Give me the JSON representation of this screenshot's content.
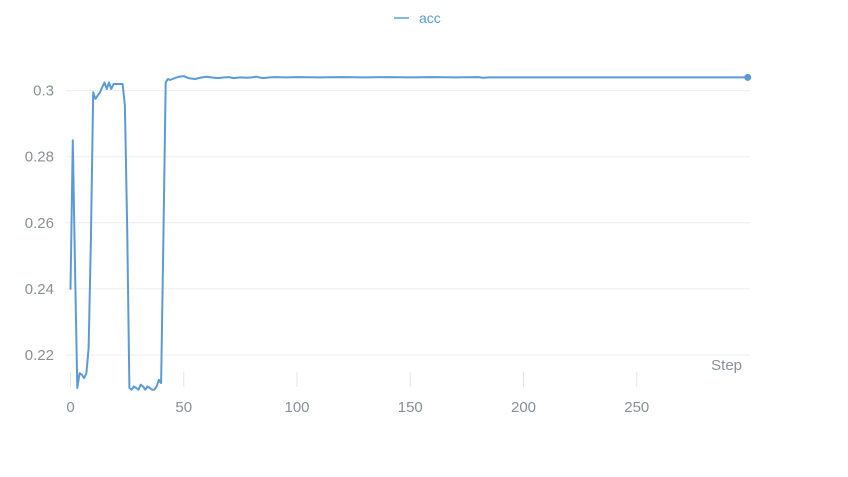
{
  "chart_data": {
    "type": "line",
    "xlabel": "Step",
    "ylabel": "",
    "xlim": [
      -2,
      300
    ],
    "ylim": [
      0.2085,
      0.3135
    ],
    "xticks": [
      0,
      50,
      100,
      150,
      200,
      250
    ],
    "yticks": [
      0.22,
      0.24,
      0.26,
      0.28,
      0.3
    ],
    "xtick_labels": [
      "0",
      "50",
      "100",
      "150",
      "200",
      "250"
    ],
    "ytick_labels": [
      "0.22",
      "0.24",
      "0.26",
      "0.28",
      "0.3"
    ],
    "grid": true,
    "legend": "top-center",
    "series": [
      {
        "name": "acc",
        "color": "#5b9bd5",
        "x": [
          0,
          1,
          2,
          3,
          4,
          5,
          6,
          7,
          8,
          9,
          10,
          11,
          12,
          13,
          14,
          15,
          16,
          17,
          18,
          19,
          20,
          21,
          22,
          23,
          24,
          25,
          26,
          27,
          28,
          29,
          30,
          31,
          32,
          33,
          34,
          35,
          36,
          37,
          38,
          39,
          40,
          41,
          42,
          43,
          44,
          45,
          46,
          47,
          48,
          50,
          52,
          55,
          58,
          60,
          62,
          65,
          68,
          70,
          72,
          75,
          78,
          80,
          82,
          85,
          88,
          90,
          95,
          100,
          110,
          120,
          130,
          140,
          150,
          160,
          170,
          180,
          182,
          185,
          190,
          200,
          210,
          220,
          230,
          240,
          250,
          260,
          270,
          280,
          290,
          299
        ],
        "y": [
          0.24,
          0.285,
          0.245,
          0.21,
          0.2145,
          0.214,
          0.213,
          0.2145,
          0.222,
          0.255,
          0.2995,
          0.2975,
          0.2985,
          0.2995,
          0.301,
          0.3025,
          0.3005,
          0.3025,
          0.3005,
          0.302,
          0.302,
          0.302,
          0.302,
          0.302,
          0.2955,
          0.258,
          0.21,
          0.2095,
          0.2105,
          0.21,
          0.2095,
          0.211,
          0.2105,
          0.2095,
          0.2105,
          0.21,
          0.2095,
          0.2095,
          0.2105,
          0.2125,
          0.2115,
          0.2555,
          0.3025,
          0.3035,
          0.3032,
          0.3035,
          0.3038,
          0.304,
          0.3042,
          0.3044,
          0.3038,
          0.3035,
          0.304,
          0.3042,
          0.304,
          0.3038,
          0.304,
          0.3041,
          0.3038,
          0.304,
          0.3039,
          0.304,
          0.3042,
          0.3038,
          0.304,
          0.3041,
          0.304,
          0.3041,
          0.304,
          0.3041,
          0.304,
          0.3041,
          0.304,
          0.3041,
          0.304,
          0.3041,
          0.3039,
          0.304,
          0.304,
          0.304,
          0.304,
          0.304,
          0.304,
          0.304,
          0.304,
          0.304,
          0.304,
          0.304,
          0.304,
          0.304
        ]
      }
    ]
  }
}
